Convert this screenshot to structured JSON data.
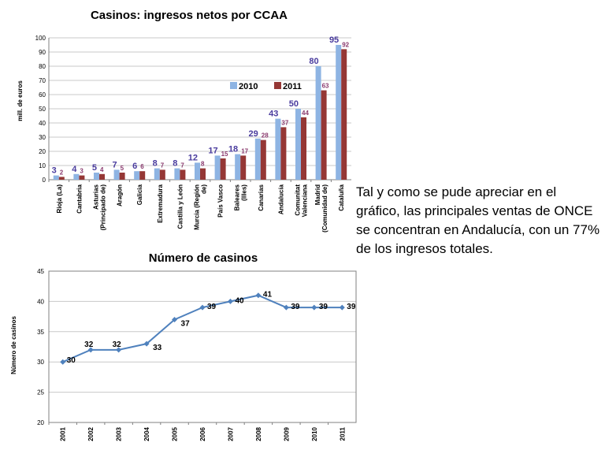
{
  "chart_data": [
    {
      "type": "bar",
      "title": "Casinos: ingresos netos por CCAA",
      "ylabel": "mill. de euros",
      "ylim": [
        0,
        100
      ],
      "yticks": [
        0,
        10,
        20,
        30,
        40,
        50,
        60,
        70,
        80,
        90,
        100
      ],
      "categories": [
        "Rioja (La)",
        "Cantabria",
        "Asturias (Principado de)",
        "Aragón",
        "Galicia",
        "Extremadura",
        "Castilla y León",
        "Murcia (Región de)",
        "País Vasco",
        "Baleares (Illes)",
        "Canarias",
        "Andalucía",
        "Comunitat Valenciana",
        "Madrid (Comunidad de)",
        "Cataluña"
      ],
      "series": [
        {
          "name": "2010",
          "color": "#8eb4e3",
          "values": [
            3,
            4,
            5,
            7,
            6,
            8,
            8,
            12,
            17,
            18,
            29,
            43,
            50,
            80,
            95
          ]
        },
        {
          "name": "2011",
          "color": "#953735",
          "values": [
            2,
            3,
            4,
            5,
            6,
            7,
            7,
            8,
            15,
            17,
            28,
            37,
            44,
            63,
            92
          ]
        }
      ],
      "grid": true,
      "legend_position": "right"
    },
    {
      "type": "line",
      "title": "Número de casinos",
      "ylabel": "Número de casinos",
      "ylim": [
        20,
        45
      ],
      "yticks": [
        20,
        25,
        30,
        35,
        40,
        45
      ],
      "x": [
        "2001",
        "2002",
        "2003",
        "2004",
        "2005",
        "2006",
        "2007",
        "2008",
        "2009",
        "2010",
        "2011"
      ],
      "series": [
        {
          "color": "#4f81bd",
          "values": [
            30,
            32,
            32,
            33,
            37,
            39,
            40,
            41,
            39,
            39,
            39
          ]
        }
      ],
      "grid": true
    }
  ],
  "text": {
    "paragraph": "Tal y como se pude apreciar en el gráfico, las principales ventas de ONCE se concentran en Andalucía, con un 77% de los ingresos totales."
  }
}
